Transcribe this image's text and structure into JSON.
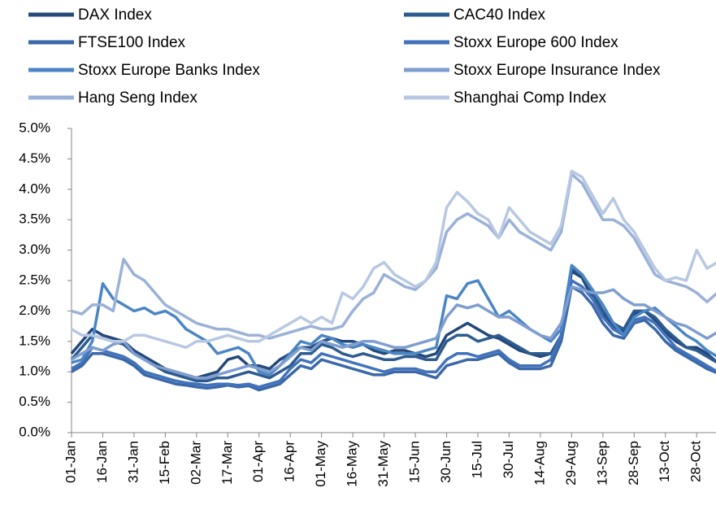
{
  "chart_data": {
    "type": "line",
    "legend": "top",
    "ylim": [
      0,
      5
    ],
    "yticks": [
      {
        "value": 0,
        "label": "0.0%"
      },
      {
        "value": 0.5,
        "label": "0.5%"
      },
      {
        "value": 1,
        "label": "1.0%"
      },
      {
        "value": 1.5,
        "label": "1.5%"
      },
      {
        "value": 2,
        "label": "2.0%"
      },
      {
        "value": 2.5,
        "label": "2.5%"
      },
      {
        "value": 3,
        "label": "3.0%"
      },
      {
        "value": 3.5,
        "label": "3.5%"
      },
      {
        "value": 4,
        "label": "4.0%"
      },
      {
        "value": 4.5,
        "label": "4.5%"
      },
      {
        "value": 5,
        "label": "5.0%"
      }
    ],
    "categories": [
      "01-Jan",
      null,
      null,
      "16-Jan",
      null,
      null,
      "31-Jan",
      null,
      null,
      "15-Feb",
      null,
      null,
      "02-Mar",
      null,
      null,
      "17-Mar",
      null,
      null,
      "01-Apr",
      null,
      null,
      "16-Apr",
      null,
      null,
      "01-May",
      null,
      null,
      "16-May",
      null,
      null,
      "31-May",
      null,
      null,
      "15-Jun",
      null,
      null,
      "30-Jun",
      null,
      null,
      "15-Jul",
      null,
      null,
      "30-Jul",
      null,
      null,
      "14-Aug",
      null,
      null,
      "29-Aug",
      null,
      null,
      "13-Sep",
      null,
      null,
      "28-Sep",
      null,
      null,
      "13-Oct",
      null,
      null,
      "28-Oct",
      null,
      null
    ],
    "series": [
      {
        "name": "DAX Index",
        "color": "#24487a",
        "values": [
          1.3,
          1.5,
          1.7,
          1.6,
          1.55,
          1.5,
          1.35,
          1.25,
          1.15,
          1.05,
          1.0,
          0.95,
          0.9,
          0.95,
          1.0,
          1.2,
          1.25,
          1.1,
          1.1,
          1.05,
          1.2,
          1.3,
          1.4,
          1.4,
          1.5,
          1.55,
          1.5,
          1.5,
          1.45,
          1.35,
          1.3,
          1.35,
          1.35,
          1.3,
          1.25,
          1.3,
          1.6,
          1.7,
          1.8,
          1.7,
          1.6,
          1.55,
          1.45,
          1.35,
          1.3,
          1.25,
          1.3,
          1.55,
          2.65,
          2.55,
          2.2,
          1.95,
          1.75,
          1.65,
          1.95,
          2.0,
          1.85,
          1.65,
          1.5,
          1.4,
          1.4,
          1.3,
          1.15
        ]
      },
      {
        "name": "CAC40 Index",
        "color": "#2d5b90",
        "values": [
          1.2,
          1.4,
          1.6,
          1.55,
          1.5,
          1.45,
          1.3,
          1.2,
          1.1,
          1.0,
          0.95,
          0.9,
          0.85,
          0.85,
          0.9,
          0.9,
          0.95,
          1.0,
          0.95,
          0.9,
          1.0,
          1.1,
          1.3,
          1.3,
          1.45,
          1.4,
          1.3,
          1.25,
          1.3,
          1.25,
          1.2,
          1.2,
          1.25,
          1.25,
          1.2,
          1.2,
          1.5,
          1.6,
          1.6,
          1.5,
          1.55,
          1.6,
          1.5,
          1.4,
          1.3,
          1.3,
          1.3,
          1.6,
          2.7,
          2.6,
          2.3,
          2.0,
          1.8,
          1.7,
          2.0,
          2.0,
          1.9,
          1.7,
          1.55,
          1.4,
          1.35,
          1.25,
          1.15
        ]
      },
      {
        "name": "FTSE100 Index",
        "color": "#3a68a8",
        "values": [
          1.0,
          1.1,
          1.3,
          1.3,
          1.25,
          1.2,
          1.1,
          0.95,
          0.9,
          0.85,
          0.8,
          0.78,
          0.75,
          0.73,
          0.75,
          0.78,
          0.75,
          0.77,
          0.7,
          0.75,
          0.8,
          0.95,
          1.1,
          1.05,
          1.2,
          1.15,
          1.1,
          1.05,
          1.0,
          0.95,
          0.95,
          1.0,
          1.0,
          1.0,
          0.95,
          0.9,
          1.1,
          1.15,
          1.2,
          1.2,
          1.25,
          1.3,
          1.15,
          1.05,
          1.05,
          1.05,
          1.1,
          1.5,
          2.4,
          2.3,
          2.1,
          1.8,
          1.6,
          1.55,
          1.8,
          1.85,
          1.7,
          1.5,
          1.35,
          1.25,
          1.15,
          1.05,
          0.98
        ]
      },
      {
        "name": "Stoxx Europe 600 Index",
        "color": "#4272bc",
        "values": [
          1.05,
          1.15,
          1.4,
          1.35,
          1.3,
          1.25,
          1.15,
          1.0,
          0.95,
          0.9,
          0.85,
          0.82,
          0.8,
          0.78,
          0.8,
          0.8,
          0.78,
          0.8,
          0.75,
          0.8,
          0.85,
          1.05,
          1.2,
          1.15,
          1.3,
          1.25,
          1.2,
          1.15,
          1.1,
          1.05,
          1.0,
          1.05,
          1.05,
          1.05,
          1.0,
          1.0,
          1.2,
          1.3,
          1.3,
          1.25,
          1.3,
          1.35,
          1.2,
          1.1,
          1.1,
          1.1,
          1.2,
          1.6,
          2.5,
          2.4,
          2.2,
          1.9,
          1.7,
          1.6,
          1.85,
          1.9,
          1.8,
          1.6,
          1.4,
          1.3,
          1.2,
          1.1,
          1.0
        ]
      },
      {
        "name": "Stoxx Europe Banks Index",
        "color": "#4b86c4",
        "values": [
          1.15,
          1.2,
          1.5,
          2.45,
          2.2,
          2.1,
          2.0,
          2.05,
          1.95,
          2.0,
          1.9,
          1.7,
          1.6,
          1.5,
          1.3,
          1.35,
          1.4,
          1.3,
          1.0,
          0.95,
          1.1,
          1.3,
          1.5,
          1.45,
          1.6,
          1.55,
          1.45,
          1.4,
          1.45,
          1.4,
          1.35,
          1.3,
          1.3,
          1.3,
          1.35,
          1.4,
          2.25,
          2.2,
          2.45,
          2.5,
          2.2,
          1.9,
          2.0,
          1.85,
          1.7,
          1.6,
          1.5,
          1.7,
          2.75,
          2.6,
          2.35,
          2.1,
          1.8,
          1.6,
          1.9,
          2.0,
          2.05,
          1.9,
          1.75,
          1.6,
          1.5,
          1.35,
          1.25
        ]
      },
      {
        "name": "Stoxx Europe Insurance Index",
        "color": "#7f9ecf",
        "values": [
          1.2,
          1.3,
          1.4,
          1.35,
          1.45,
          1.5,
          1.3,
          1.2,
          1.1,
          1.05,
          1.0,
          0.95,
          0.9,
          0.9,
          0.95,
          1.0,
          1.05,
          1.1,
          1.05,
          1.0,
          1.1,
          1.25,
          1.4,
          1.35,
          1.5,
          1.45,
          1.4,
          1.45,
          1.5,
          1.5,
          1.45,
          1.4,
          1.4,
          1.45,
          1.5,
          1.55,
          1.9,
          2.1,
          2.05,
          2.1,
          2.0,
          1.9,
          1.9,
          1.8,
          1.7,
          1.6,
          1.55,
          1.8,
          2.4,
          2.35,
          2.3,
          2.3,
          2.35,
          2.2,
          2.1,
          2.1,
          2.0,
          1.9,
          1.8,
          1.75,
          1.65,
          1.55,
          1.65
        ]
      },
      {
        "name": "Hang Seng Index",
        "color": "#9ab1d8",
        "values": [
          2.0,
          1.95,
          2.1,
          2.1,
          2.0,
          2.85,
          2.6,
          2.5,
          2.3,
          2.1,
          2.0,
          1.9,
          1.8,
          1.75,
          1.7,
          1.7,
          1.65,
          1.6,
          1.6,
          1.55,
          1.6,
          1.65,
          1.7,
          1.75,
          1.7,
          1.7,
          1.75,
          2.0,
          2.2,
          2.3,
          2.6,
          2.5,
          2.4,
          2.35,
          2.5,
          2.7,
          3.3,
          3.5,
          3.6,
          3.5,
          3.4,
          3.2,
          3.5,
          3.3,
          3.2,
          3.1,
          3.0,
          3.3,
          4.25,
          4.1,
          3.8,
          3.5,
          3.5,
          3.4,
          3.2,
          2.9,
          2.6,
          2.5,
          2.45,
          2.4,
          2.3,
          2.15,
          2.3
        ]
      },
      {
        "name": "Shanghai Comp Index",
        "color": "#b9c8e2",
        "values": [
          1.7,
          1.6,
          1.6,
          1.55,
          1.5,
          1.5,
          1.6,
          1.6,
          1.55,
          1.5,
          1.45,
          1.4,
          1.5,
          1.5,
          1.55,
          1.6,
          1.55,
          1.5,
          1.5,
          1.6,
          1.7,
          1.8,
          1.9,
          1.8,
          1.9,
          1.8,
          2.3,
          2.2,
          2.4,
          2.7,
          2.8,
          2.6,
          2.5,
          2.4,
          2.5,
          2.8,
          3.7,
          3.95,
          3.8,
          3.6,
          3.5,
          3.2,
          3.7,
          3.5,
          3.3,
          3.2,
          3.1,
          3.4,
          4.3,
          4.2,
          3.9,
          3.6,
          3.85,
          3.5,
          3.3,
          3.0,
          2.7,
          2.5,
          2.55,
          2.5,
          3.0,
          2.7,
          2.8
        ]
      }
    ]
  }
}
